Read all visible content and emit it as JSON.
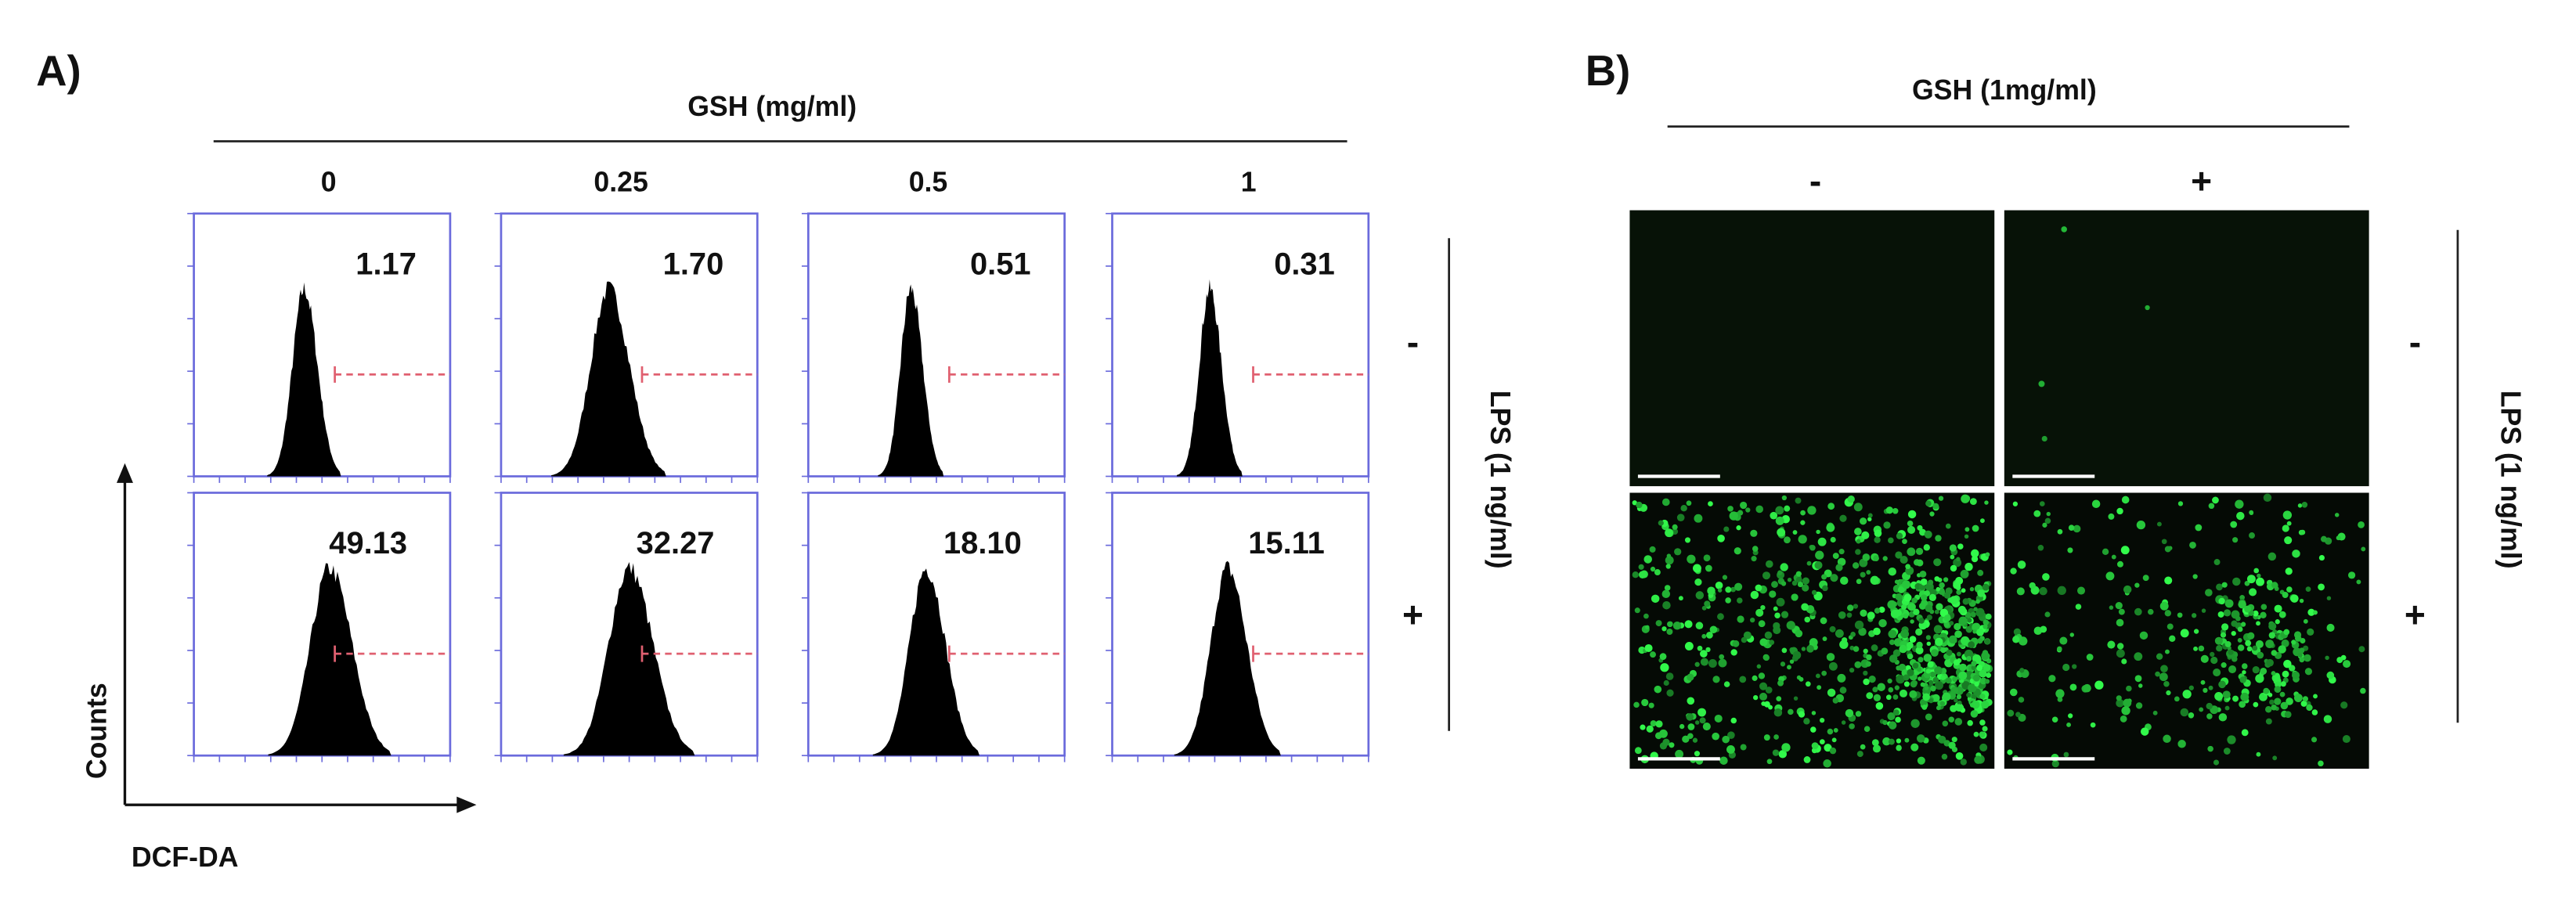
{
  "panel_a": {
    "label": "A)",
    "treatment_title": "GSH (mg/ml)",
    "concentrations": [
      "0",
      "0.25",
      "0.5",
      "1"
    ],
    "percentages": [
      [
        "1.17",
        "1.70",
        "0.51",
        "0.31"
      ],
      [
        "49.13",
        "32.27",
        "18.10",
        "15.11"
      ]
    ],
    "row_labels": [
      "-",
      "+"
    ],
    "side_title": "LPS (1 ng/ml)",
    "y_axis_label": "Counts",
    "x_axis_label": "DCF-DA"
  },
  "panel_b": {
    "label": "B)",
    "treatment_title": "GSH (1mg/ml)",
    "column_labels": [
      "-",
      "+"
    ],
    "row_labels": [
      "-",
      "+"
    ],
    "side_title": "LPS (1 ng/ml)"
  }
}
